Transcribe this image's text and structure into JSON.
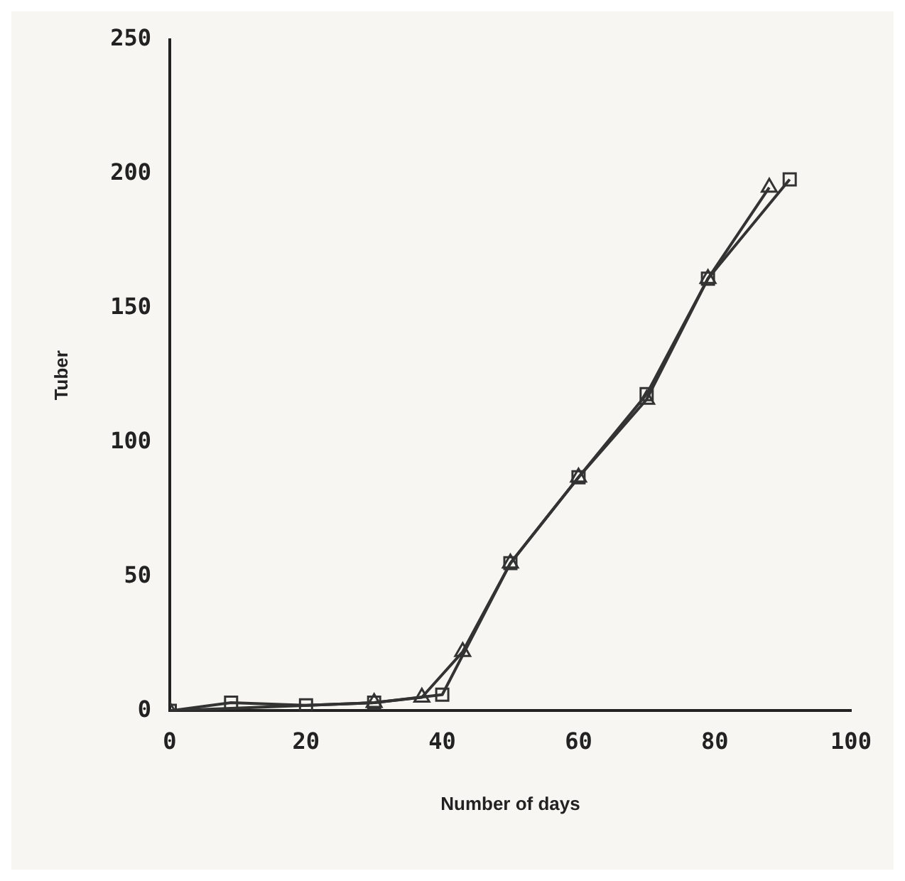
{
  "chart_data": {
    "type": "line",
    "xlabel": "Number of days",
    "ylabel": "Tuber",
    "xlim": [
      0,
      100
    ],
    "ylim": [
      0,
      250
    ],
    "xticks": [
      0,
      20,
      40,
      60,
      80,
      100
    ],
    "yticks": [
      0,
      50,
      100,
      150,
      200,
      250
    ],
    "grid": false,
    "legend": false,
    "series": [
      {
        "color": "#333333",
        "marker": "square",
        "x": [
          0,
          9,
          20,
          30,
          40,
          50,
          60,
          70,
          79,
          91
        ],
        "values": [
          0,
          3,
          2,
          3,
          6,
          55,
          87,
          118,
          161,
          198
        ]
      },
      {
        "color": "#333333",
        "marker": "triangle",
        "x": [
          0,
          30,
          37,
          43,
          50,
          60,
          70,
          79,
          88
        ],
        "values": [
          0,
          3,
          5,
          22,
          55,
          87,
          116,
          161,
          195
        ]
      }
    ]
  }
}
